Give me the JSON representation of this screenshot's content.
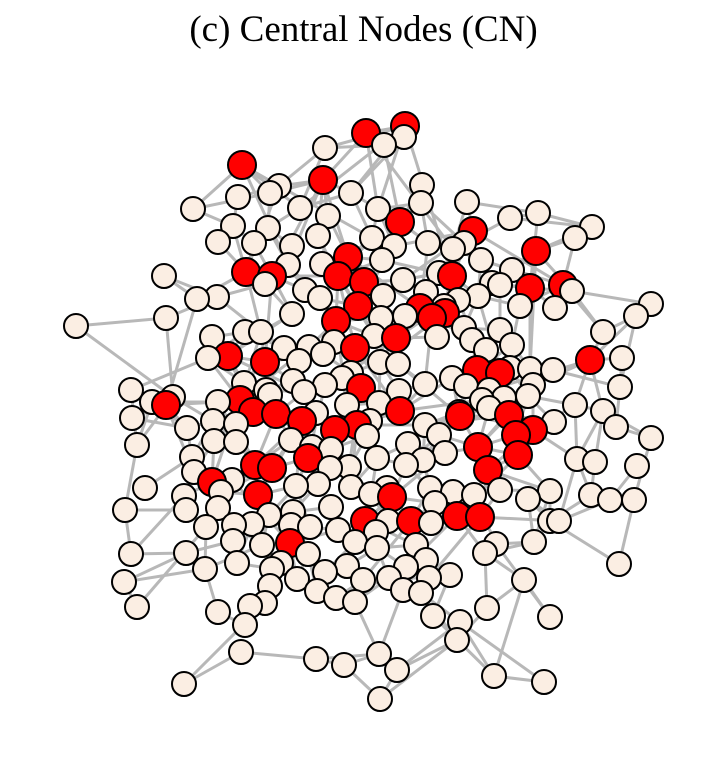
{
  "title": "(c) Central Nodes (CN)",
  "colors": {
    "central_node": "#ff0000",
    "regular_node": "#fbeee3",
    "edge": "#b8b8b8",
    "node_outline": "#000000"
  }
}
